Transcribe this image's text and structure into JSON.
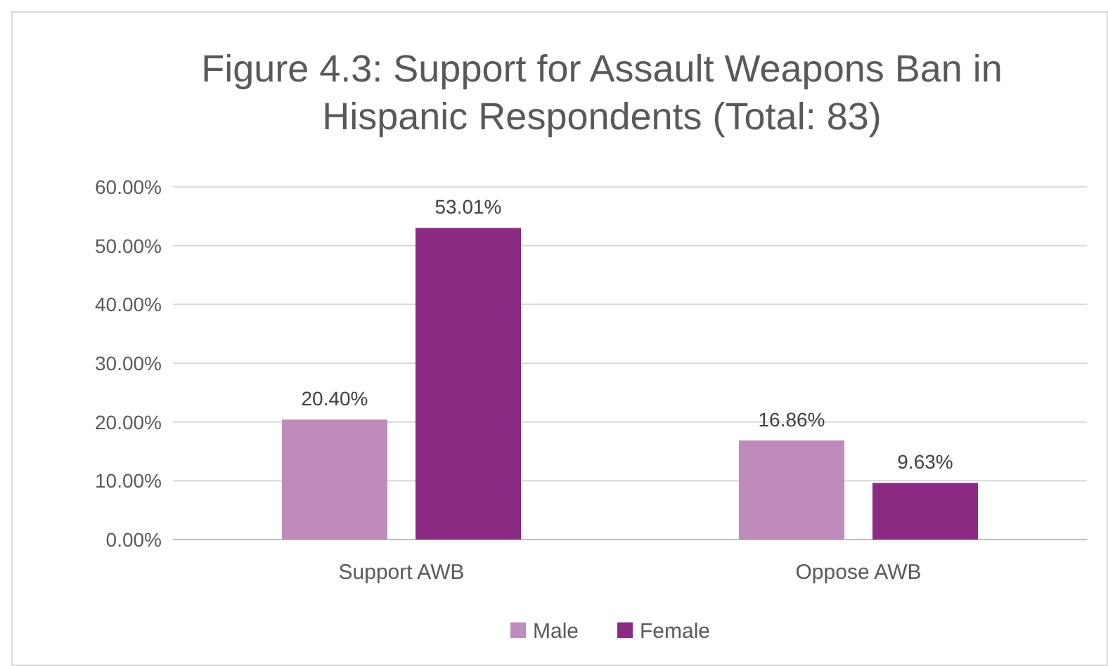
{
  "chart_data": {
    "type": "bar",
    "title": "Figure 4.3: Support for Assault Weapons Ban in Hispanic Respondents (Total: 83)",
    "categories": [
      "Support AWB",
      "Oppose AWB"
    ],
    "series": [
      {
        "name": "Male",
        "color": "#bf8bbb",
        "values": [
          20.4,
          16.86
        ],
        "value_labels": [
          "20.40%",
          "16.86%"
        ]
      },
      {
        "name": "Female",
        "color": "#8b2a82",
        "values": [
          53.01,
          9.63
        ],
        "value_labels": [
          "53.01%",
          "9.63%"
        ]
      }
    ],
    "ylim": [
      0,
      60
    ],
    "yticks": [
      {
        "value": 0,
        "label": "0.00%"
      },
      {
        "value": 10,
        "label": "10.00%"
      },
      {
        "value": 20,
        "label": "20.00%"
      },
      {
        "value": 30,
        "label": "30.00%"
      },
      {
        "value": 40,
        "label": "40.00%"
      },
      {
        "value": 50,
        "label": "50.00%"
      },
      {
        "value": 60,
        "label": "60.00%"
      }
    ],
    "grid": "y",
    "legend": "bottom"
  }
}
